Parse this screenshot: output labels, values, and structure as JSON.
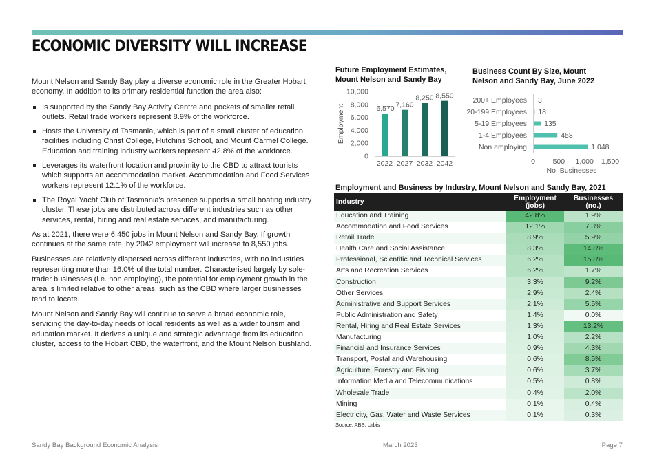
{
  "header": {
    "title": "ECONOMIC DIVERSITY WILL INCREASE"
  },
  "body": {
    "intro": "Mount Nelson and Sandy Bay play a diverse economic role in the Greater Hobart economy. In addition to its primary residential function the area also:",
    "bullets": [
      "Is supported by the Sandy Bay Activity Centre and pockets of smaller retail outlets. Retail trade workers represent 8.9% of the workforce.",
      "Hosts the University of Tasmania, which is part of a small cluster of education facilities including Christ College, Hutchins School, and Mount Carmel College. Education and training industry workers represent 42.8% of the workforce.",
      "Leverages its waterfront location and proximity to the CBD to attract tourists which supports an accommodation market. Accommodation and Food Services workers represent 12.1% of the workforce.",
      "The Royal Yacht Club of Tasmania's presence supports a small boating industry cluster. These jobs are distributed across different industries such as other services, rental, hiring and real estate services, and manufacturing."
    ],
    "para1": "As at 2021, there were 6,450 jobs in Mount Nelson and Sandy Bay. If growth continues at the same rate, by 2042 employment will increase to 8,550 jobs.",
    "para2": "Businesses are relatively dispersed across different industries, with no industries representing more than 16.0% of the total number. Characterised largely by sole-trader businesses (i.e. non employing), the potential for employment growth in the area is limited relative to other areas, such as the CBD where larger businesses tend to locate.",
    "para3": "Mount Nelson and Sandy Bay will continue to serve a broad economic role, servicing the day-to-day needs of local residents as well as a wider tourism and education market. It derives a unique and strategic advantage from its education cluster, access to the Hobart CBD, the waterfront, and the Mount Nelson bushland."
  },
  "chart_data": [
    {
      "type": "bar",
      "title": "Future Employment Estimates, Mount Nelson and Sandy Bay",
      "categories": [
        "2022",
        "2027",
        "2032",
        "2042"
      ],
      "values": [
        6570,
        7160,
        8250,
        8550
      ],
      "value_labels": [
        "6,570",
        "7,160",
        "8,250",
        "8,550"
      ],
      "xlabel": "",
      "ylabel": "Employment",
      "ylim": [
        0,
        10000
      ],
      "yticks": [
        0,
        2000,
        4000,
        6000,
        8000,
        10000
      ],
      "ytick_labels": [
        "0",
        "2,000",
        "4,000",
        "6,000",
        "8,000",
        "10,000"
      ],
      "colors": [
        "#2aa88f",
        "#25806e",
        "#1e6b5d",
        "#1b5e55"
      ]
    },
    {
      "type": "bar",
      "orientation": "horizontal",
      "title": "Business Count By Size, Mount Nelson and Sandy Bay, June 2022",
      "categories": [
        "200+ Employees",
        "20-199 Employees",
        "5-19 Employees",
        "1-4 Employees",
        "Non employing"
      ],
      "values": [
        3,
        18,
        135,
        458,
        1048
      ],
      "value_labels": [
        "3",
        "18",
        "135",
        "458",
        "1,048"
      ],
      "xlabel": "No. Businesses",
      "xlim": [
        0,
        1500
      ],
      "xticks": [
        0,
        500,
        1000,
        1500
      ],
      "xtick_labels": [
        "0",
        "500",
        "1,000",
        "1,500"
      ],
      "color": "#4fc0ae"
    }
  ],
  "table": {
    "title": "Employment and Business by Industry, Mount Nelson and Sandy Bay, 2021",
    "headers": [
      "Industry",
      "Employment (jobs)",
      "Businesses (no.)"
    ],
    "rows": [
      [
        "Education and Training",
        "42.8%",
        "1.9%"
      ],
      [
        "Accommodation and Food Services",
        "12.1%",
        "7.3%"
      ],
      [
        "Retail Trade",
        "8.9%",
        "5.9%"
      ],
      [
        "Health Care and Social Assistance",
        "8.3%",
        "14.8%"
      ],
      [
        "Professional, Scientific and Technical Services",
        "6.2%",
        "15.8%"
      ],
      [
        "Arts and Recreation Services",
        "6.2%",
        "1.7%"
      ],
      [
        "Construction",
        "3.3%",
        "9.2%"
      ],
      [
        "Other Services",
        "2.9%",
        "2.4%"
      ],
      [
        "Administrative and Support Services",
        "2.1%",
        "5.5%"
      ],
      [
        "Public Administration and Safety",
        "1.4%",
        "0.0%"
      ],
      [
        "Rental, Hiring and Real Estate Services",
        "1.3%",
        "13.2%"
      ],
      [
        "Manufacturing",
        "1.0%",
        "2.2%"
      ],
      [
        "Financial and Insurance Services",
        "0.9%",
        "4.3%"
      ],
      [
        "Transport, Postal and Warehousing",
        "0.6%",
        "8.5%"
      ],
      [
        "Agriculture, Forestry and Fishing",
        "0.6%",
        "3.7%"
      ],
      [
        "Information Media and Telecommunications",
        "0.5%",
        "0.8%"
      ],
      [
        "Wholesale Trade",
        "0.4%",
        "2.0%"
      ],
      [
        "Mining",
        "0.1%",
        "0.4%"
      ],
      [
        "Electricity, Gas, Water and Waste Services",
        "0.1%",
        "0.3%"
      ]
    ],
    "source": "Source: ABS; Urbis"
  },
  "footer": {
    "left": "Sandy Bay Background Economic Analysis",
    "center": "March 2023",
    "right": "Page 7"
  }
}
